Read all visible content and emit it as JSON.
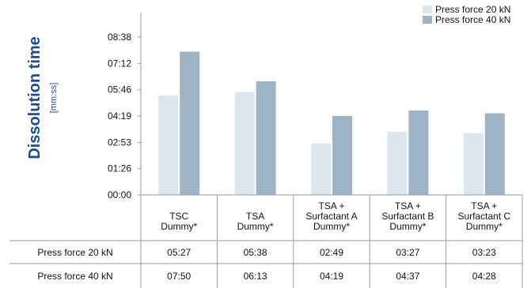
{
  "chart_data": {
    "type": "bar",
    "ylabel": "Dissolution time",
    "yunit": "[mm:ss]",
    "y_tick_labels": [
      "00:00",
      "01:26",
      "02:53",
      "04:19",
      "05:46",
      "07:12",
      "08:38"
    ],
    "ylim_seconds": [
      0,
      518
    ],
    "grid": false,
    "legend_position": "top-right",
    "categories": [
      [
        "TSC",
        "Dummy*"
      ],
      [
        "TSA",
        "Dummy*"
      ],
      [
        "TSA +",
        "Surfactant A",
        "Dummy*"
      ],
      [
        "TSA +",
        "Surfactant B",
        "Dummy*"
      ],
      [
        "TSA +",
        "Surfactant C",
        "Dummy*"
      ]
    ],
    "series": [
      {
        "name": "Press force 20 kN",
        "color": "#dde6ef",
        "values": [
          "05:27",
          "05:38",
          "02:49",
          "03:27",
          "03:23"
        ],
        "seconds": [
          327,
          338,
          169,
          207,
          203
        ]
      },
      {
        "name": "Press force 40 kN",
        "color": "#9cb4c6",
        "values": [
          "07:50",
          "06:13",
          "04:19",
          "04:37",
          "04:28"
        ],
        "seconds": [
          470,
          373,
          259,
          277,
          268
        ]
      }
    ]
  }
}
